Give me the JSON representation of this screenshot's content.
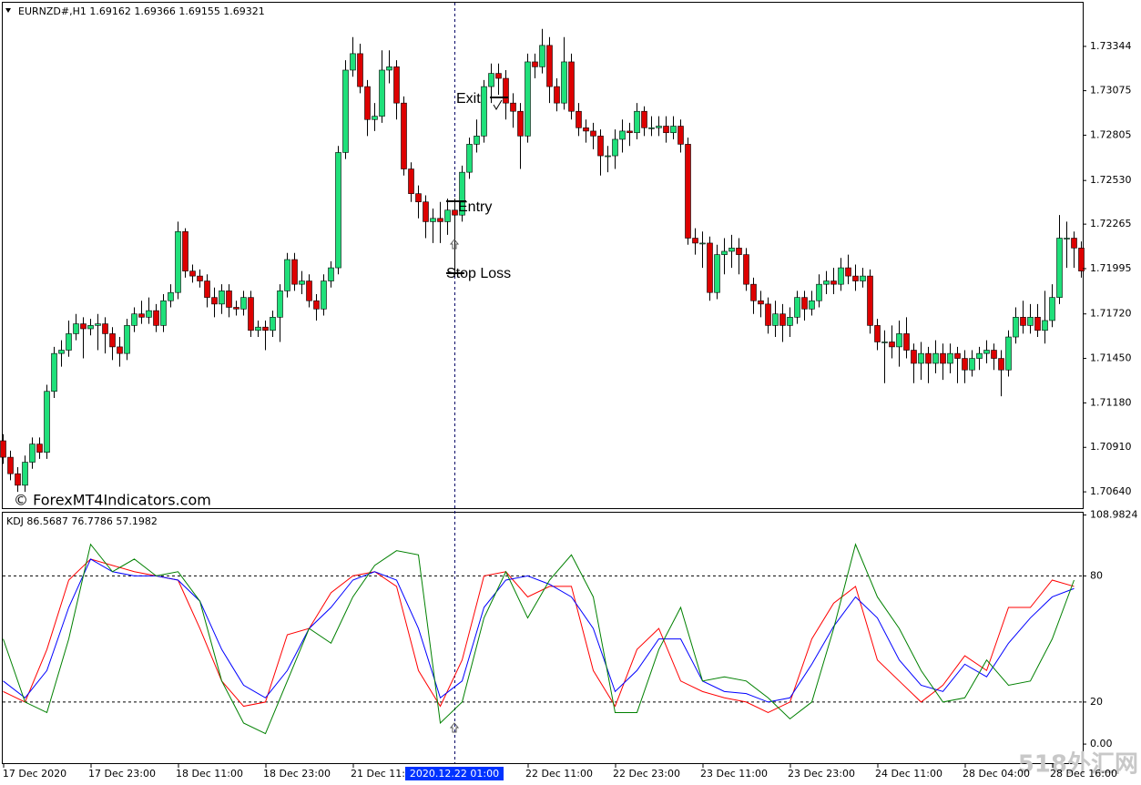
{
  "chart_data": [
    {
      "type": "candlestick",
      "title": "EURNZD#,H1  1.69162 1.69366 1.69155 1.69321",
      "up_color": "#1fe07a",
      "down_color": "#dd0000",
      "ylim": [
        1.70541,
        1.73609
      ],
      "yticks": [
        {
          "value": 1.7064,
          "label": "1.70640"
        },
        {
          "value": 1.7091,
          "label": "1.70910"
        },
        {
          "value": 1.7118,
          "label": "1.71180"
        },
        {
          "value": 1.7145,
          "label": "1.71450"
        },
        {
          "value": 1.7172,
          "label": "1.71720"
        },
        {
          "value": 1.71995,
          "label": "1.71995"
        },
        {
          "value": 1.72265,
          "label": "1.72265"
        },
        {
          "value": 1.7253,
          "label": "1.72530"
        },
        {
          "value": 1.72805,
          "label": "1.72805"
        },
        {
          "value": 1.73075,
          "label": "1.73075"
        },
        {
          "value": 1.73344,
          "label": "1.73344"
        }
      ],
      "annotations": [
        "Exit",
        "Entry",
        "Stop Loss"
      ],
      "watermark": "© ForexMT4Indicators.com",
      "candles": [
        [
          1.7095,
          1.7099,
          1.7081,
          1.7085
        ],
        [
          1.7085,
          1.7089,
          1.7071,
          1.7075
        ],
        [
          1.7075,
          1.7079,
          1.7064,
          1.7068
        ],
        [
          1.7068,
          1.7086,
          1.7064,
          1.7082
        ],
        [
          1.7082,
          1.7097,
          1.7078,
          1.7093
        ],
        [
          1.7093,
          1.7097,
          1.7084,
          1.7088
        ],
        [
          1.7088,
          1.7129,
          1.7084,
          1.7125
        ],
        [
          1.7125,
          1.7152,
          1.7121,
          1.7148
        ],
        [
          1.7148,
          1.7156,
          1.714,
          1.715
        ],
        [
          1.715,
          1.7168,
          1.7146,
          1.716
        ],
        [
          1.716,
          1.7172,
          1.7156,
          1.7166
        ],
        [
          1.7166,
          1.717,
          1.7145,
          1.7163
        ],
        [
          1.7163,
          1.7169,
          1.7159,
          1.7165
        ],
        [
          1.7165,
          1.7172,
          1.715,
          1.7166
        ],
        [
          1.7166,
          1.717,
          1.7148,
          1.716
        ],
        [
          1.716,
          1.7164,
          1.7144,
          1.7152
        ],
        [
          1.7152,
          1.7158,
          1.714,
          1.7148
        ],
        [
          1.7148,
          1.7169,
          1.7144,
          1.7165
        ],
        [
          1.7165,
          1.7176,
          1.7161,
          1.7172
        ],
        [
          1.7172,
          1.718,
          1.7166,
          1.717
        ],
        [
          1.717,
          1.7182,
          1.7166,
          1.7174
        ],
        [
          1.7174,
          1.7178,
          1.7161,
          1.7165
        ],
        [
          1.7165,
          1.7184,
          1.7161,
          1.718
        ],
        [
          1.718,
          1.719,
          1.7176,
          1.7185
        ],
        [
          1.7185,
          1.7228,
          1.7181,
          1.7222
        ],
        [
          1.7222,
          1.7224,
          1.7194,
          1.7198
        ],
        [
          1.7198,
          1.7202,
          1.7191,
          1.7195
        ],
        [
          1.7195,
          1.7199,
          1.7188,
          1.7192
        ],
        [
          1.7192,
          1.7196,
          1.7176,
          1.7182
        ],
        [
          1.7182,
          1.7188,
          1.717,
          1.7178
        ],
        [
          1.7178,
          1.719,
          1.7172,
          1.7186
        ],
        [
          1.7186,
          1.719,
          1.717,
          1.7176
        ],
        [
          1.7176,
          1.718,
          1.7171,
          1.7175
        ],
        [
          1.7175,
          1.7186,
          1.7171,
          1.7182
        ],
        [
          1.7182,
          1.7186,
          1.7158,
          1.7162
        ],
        [
          1.7162,
          1.7168,
          1.7158,
          1.7164
        ],
        [
          1.7164,
          1.7168,
          1.715,
          1.7162
        ],
        [
          1.7162,
          1.7174,
          1.7158,
          1.717
        ],
        [
          1.717,
          1.719,
          1.7155,
          1.7186
        ],
        [
          1.7186,
          1.7209,
          1.7182,
          1.7205
        ],
        [
          1.7205,
          1.7209,
          1.7186,
          1.719
        ],
        [
          1.719,
          1.7198,
          1.7184,
          1.7192
        ],
        [
          1.7192,
          1.7196,
          1.7176,
          1.718
        ],
        [
          1.718,
          1.7184,
          1.7168,
          1.7175
        ],
        [
          1.7175,
          1.7196,
          1.7171,
          1.7192
        ],
        [
          1.7192,
          1.7204,
          1.7188,
          1.72
        ],
        [
          1.72,
          1.7274,
          1.7196,
          1.727
        ],
        [
          1.727,
          1.7326,
          1.7266,
          1.732
        ],
        [
          1.732,
          1.734,
          1.7316,
          1.733
        ],
        [
          1.733,
          1.7336,
          1.7306,
          1.731
        ],
        [
          1.731,
          1.7314,
          1.728,
          1.729
        ],
        [
          1.729,
          1.73,
          1.7283,
          1.7292
        ],
        [
          1.7292,
          1.7332,
          1.7288,
          1.732
        ],
        [
          1.732,
          1.7332,
          1.7312,
          1.7322
        ],
        [
          1.7322,
          1.7326,
          1.729,
          1.73
        ],
        [
          1.73,
          1.7304,
          1.7256,
          1.726
        ],
        [
          1.726,
          1.7264,
          1.724,
          1.7245
        ],
        [
          1.7245,
          1.725,
          1.723,
          1.724
        ],
        [
          1.724,
          1.7244,
          1.7218,
          1.7228
        ],
        [
          1.7228,
          1.7236,
          1.7215,
          1.723
        ],
        [
          1.723,
          1.724,
          1.7215,
          1.7228
        ],
        [
          1.7228,
          1.7242,
          1.722,
          1.7235
        ],
        [
          1.7235,
          1.7242,
          1.7196,
          1.7232
        ],
        [
          1.7232,
          1.7262,
          1.7228,
          1.7258
        ],
        [
          1.7258,
          1.7279,
          1.7254,
          1.7275
        ],
        [
          1.7275,
          1.729,
          1.727,
          1.728
        ],
        [
          1.728,
          1.7314,
          1.7276,
          1.731
        ],
        [
          1.731,
          1.7324,
          1.73,
          1.7318
        ],
        [
          1.7318,
          1.7324,
          1.7305,
          1.7315
        ],
        [
          1.7315,
          1.732,
          1.729,
          1.73
        ],
        [
          1.73,
          1.7306,
          1.7285,
          1.7295
        ],
        [
          1.7295,
          1.73,
          1.726,
          1.728
        ],
        [
          1.728,
          1.733,
          1.7276,
          1.7325
        ],
        [
          1.7325,
          1.733,
          1.7315,
          1.7322
        ],
        [
          1.7322,
          1.7345,
          1.7318,
          1.7335
        ],
        [
          1.7335,
          1.734,
          1.73,
          1.731
        ],
        [
          1.731,
          1.7315,
          1.7295,
          1.73
        ],
        [
          1.73,
          1.734,
          1.7296,
          1.7325
        ],
        [
          1.7325,
          1.733,
          1.729,
          1.7295
        ],
        [
          1.7295,
          1.73,
          1.728,
          1.7285
        ],
        [
          1.7285,
          1.729,
          1.7276,
          1.7283
        ],
        [
          1.7283,
          1.7288,
          1.7272,
          1.728
        ],
        [
          1.728,
          1.7284,
          1.7256,
          1.7268
        ],
        [
          1.7268,
          1.7274,
          1.7258,
          1.7268
        ],
        [
          1.7268,
          1.7284,
          1.726,
          1.7278
        ],
        [
          1.7278,
          1.729,
          1.727,
          1.7283
        ],
        [
          1.7283,
          1.7288,
          1.7274,
          1.7282
        ],
        [
          1.7282,
          1.73,
          1.7278,
          1.7295
        ],
        [
          1.7295,
          1.7298,
          1.728,
          1.7285
        ],
        [
          1.7285,
          1.7292,
          1.728,
          1.7285
        ],
        [
          1.7285,
          1.7292,
          1.728,
          1.7286
        ],
        [
          1.7286,
          1.7292,
          1.7276,
          1.7282
        ],
        [
          1.7282,
          1.7292,
          1.7278,
          1.7286
        ],
        [
          1.7286,
          1.729,
          1.727,
          1.7275
        ],
        [
          1.7275,
          1.7279,
          1.7214,
          1.7218
        ],
        [
          1.7218,
          1.7224,
          1.7208,
          1.7215
        ],
        [
          1.7215,
          1.7222,
          1.72,
          1.7215
        ],
        [
          1.7215,
          1.7219,
          1.718,
          1.7185
        ],
        [
          1.7185,
          1.7214,
          1.7181,
          1.7208
        ],
        [
          1.7208,
          1.7218,
          1.7196,
          1.721
        ],
        [
          1.721,
          1.722,
          1.72,
          1.7212
        ],
        [
          1.7212,
          1.7218,
          1.7196,
          1.7208
        ],
        [
          1.7208,
          1.7212,
          1.7186,
          1.719
        ],
        [
          1.719,
          1.7194,
          1.7172,
          1.718
        ],
        [
          1.718,
          1.7186,
          1.717,
          1.7178
        ],
        [
          1.7178,
          1.7182,
          1.716,
          1.7165
        ],
        [
          1.7165,
          1.718,
          1.7158,
          1.7172
        ],
        [
          1.7172,
          1.7178,
          1.7155,
          1.7165
        ],
        [
          1.7165,
          1.7176,
          1.7158,
          1.717
        ],
        [
          1.717,
          1.7186,
          1.7166,
          1.7182
        ],
        [
          1.7182,
          1.7186,
          1.7168,
          1.7175
        ],
        [
          1.7175,
          1.7186,
          1.7171,
          1.718
        ],
        [
          1.718,
          1.7196,
          1.7176,
          1.719
        ],
        [
          1.719,
          1.7198,
          1.7184,
          1.7192
        ],
        [
          1.7192,
          1.72,
          1.7184,
          1.719
        ],
        [
          1.719,
          1.7206,
          1.7186,
          1.72
        ],
        [
          1.72,
          1.7208,
          1.719,
          1.7195
        ],
        [
          1.7195,
          1.7202,
          1.7186,
          1.7192
        ],
        [
          1.7192,
          1.72,
          1.7188,
          1.7195
        ],
        [
          1.7195,
          1.7199,
          1.716,
          1.7165
        ],
        [
          1.7165,
          1.7169,
          1.715,
          1.7155
        ],
        [
          1.7155,
          1.7162,
          1.713,
          1.7155
        ],
        [
          1.7155,
          1.7165,
          1.7145,
          1.7152
        ],
        [
          1.7152,
          1.7168,
          1.714,
          1.716
        ],
        [
          1.716,
          1.717,
          1.7145,
          1.715
        ],
        [
          1.715,
          1.7154,
          1.713,
          1.7142
        ],
        [
          1.7142,
          1.7155,
          1.7132,
          1.7148
        ],
        [
          1.7148,
          1.7152,
          1.713,
          1.7142
        ],
        [
          1.7142,
          1.7156,
          1.7136,
          1.7148
        ],
        [
          1.7148,
          1.7154,
          1.7132,
          1.7142
        ],
        [
          1.7142,
          1.7154,
          1.7136,
          1.7148
        ],
        [
          1.7148,
          1.7152,
          1.713,
          1.7145
        ],
        [
          1.7145,
          1.715,
          1.713,
          1.7138
        ],
        [
          1.7138,
          1.715,
          1.7134,
          1.7145
        ],
        [
          1.7145,
          1.7152,
          1.7138,
          1.7148
        ],
        [
          1.7148,
          1.7156,
          1.7142,
          1.715
        ],
        [
          1.715,
          1.7154,
          1.7138,
          1.7145
        ],
        [
          1.7145,
          1.715,
          1.7122,
          1.7138
        ],
        [
          1.7138,
          1.7162,
          1.7134,
          1.7158
        ],
        [
          1.7158,
          1.7176,
          1.7154,
          1.717
        ],
        [
          1.717,
          1.718,
          1.716,
          1.7165
        ],
        [
          1.7165,
          1.7178,
          1.716,
          1.717
        ],
        [
          1.717,
          1.7178,
          1.7158,
          1.7162
        ],
        [
          1.7162,
          1.7186,
          1.7154,
          1.7168
        ],
        [
          1.7168,
          1.719,
          1.7164,
          1.7182
        ],
        [
          1.7182,
          1.7232,
          1.7178,
          1.7218
        ],
        [
          1.7218,
          1.7228,
          1.72,
          1.7218
        ],
        [
          1.7218,
          1.7222,
          1.72,
          1.7212
        ],
        [
          1.7212,
          1.7216,
          1.7194,
          1.7198
        ]
      ]
    },
    {
      "type": "line",
      "title": "KDJ 86.5687 76.7786 57.1982",
      "ylim": [
        -9.06,
        110.05
      ],
      "yticks": [
        108.9824,
        80,
        20,
        {
          "value": 0,
          "label": "0.00"
        }
      ],
      "levels": [
        80,
        20
      ],
      "series": [
        {
          "color": "#ff0000",
          "values": [
            25,
            20,
            45,
            78,
            88,
            85,
            82,
            80,
            78,
            55,
            30,
            18,
            20,
            52,
            55,
            72,
            80,
            82,
            75,
            35,
            18,
            40,
            80,
            82,
            70,
            75,
            75,
            35,
            18,
            45,
            55,
            30,
            25,
            22,
            20,
            15,
            20,
            50,
            67,
            75,
            40,
            30,
            20,
            28,
            42,
            35,
            65,
            65,
            78,
            75
          ]
        },
        {
          "color": "#0000ff",
          "values": [
            30,
            22,
            35,
            65,
            88,
            82,
            80,
            80,
            78,
            68,
            45,
            28,
            22,
            35,
            55,
            65,
            78,
            82,
            78,
            55,
            22,
            30,
            65,
            78,
            80,
            76,
            70,
            55,
            25,
            35,
            50,
            50,
            30,
            25,
            24,
            20,
            22,
            38,
            56,
            70,
            60,
            40,
            28,
            25,
            38,
            32,
            48,
            60,
            70,
            74
          ]
        },
        {
          "color": "#008000",
          "values": [
            50,
            20,
            15,
            50,
            95,
            82,
            88,
            80,
            82,
            68,
            30,
            10,
            5,
            30,
            55,
            48,
            70,
            85,
            92,
            90,
            10,
            20,
            60,
            82,
            60,
            78,
            90,
            70,
            15,
            15,
            45,
            65,
            30,
            32,
            30,
            22,
            12,
            20,
            55,
            95,
            70,
            55,
            35,
            20,
            22,
            40,
            28,
            30,
            50,
            78
          ]
        }
      ]
    }
  ],
  "time_axis": {
    "labels": [
      "17 Dec 2020",
      "17 Dec 23:00",
      "18 Dec 11:00",
      "18 Dec 23:00",
      "21 Dec 11:00",
      "22 Dec 11:00",
      "22 Dec 23:00",
      "23 Dec 11:00",
      "23 Dec 23:00",
      "24 Dec 11:00",
      "28 Dec 04:00",
      "28 Dec 16:00"
    ],
    "cursor_label": "2020.12.22 01:00"
  },
  "site_mark": "518外汇网"
}
